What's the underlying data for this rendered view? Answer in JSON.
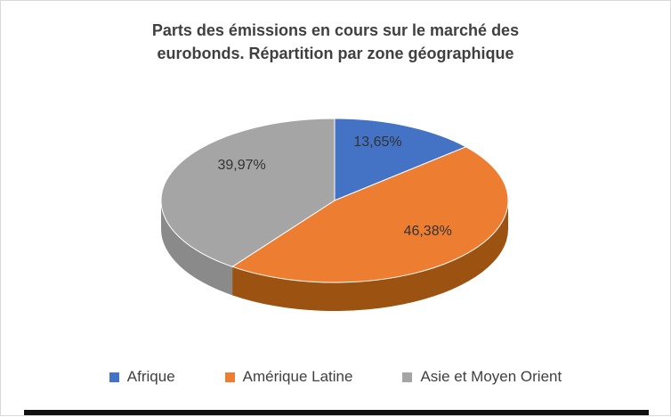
{
  "chart_data": {
    "type": "pie",
    "title": "Parts des émissions en cours sur le marché des eurobonds. Répartition par zone géographique",
    "categories": [
      "Afrique",
      "Amérique Latine",
      "Asie et Moyen Orient"
    ],
    "values": [
      13.65,
      46.38,
      39.97
    ],
    "data_labels": [
      "13,65%",
      "46,38%",
      "39,97%"
    ],
    "colors": [
      "#4472C4",
      "#ED7D31",
      "#A5A5A5"
    ],
    "side_colors": [
      "#2E5395",
      "#9C5312",
      "#8A8A8A"
    ],
    "label_color": "#333333",
    "effect": "3d",
    "start_angle_deg": -90,
    "legend_position": "bottom",
    "legend": [
      {
        "label": "Afrique",
        "color": "#4472C4"
      },
      {
        "label": "Amérique Latine",
        "color": "#ED7D31"
      },
      {
        "label": "Asie et Moyen Orient",
        "color": "#A5A5A5"
      }
    ]
  }
}
